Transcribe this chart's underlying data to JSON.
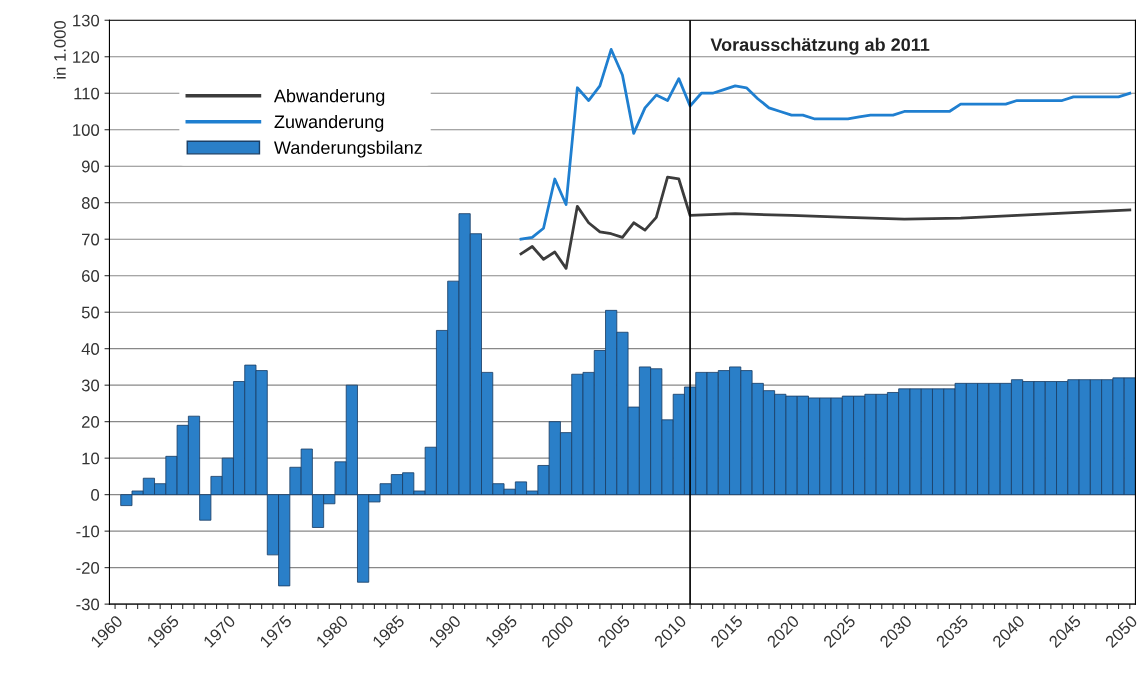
{
  "chart_data": {
    "type": "bar",
    "ylabel": "in 1.000",
    "xlim": [
      1959.5,
      2050.5
    ],
    "ylim": [
      -30,
      130
    ],
    "yticks": [
      -30,
      -20,
      -10,
      0,
      10,
      20,
      30,
      40,
      50,
      60,
      70,
      80,
      90,
      100,
      110,
      120,
      130
    ],
    "xticks": [
      1960,
      {
        "value": 1961,
        "label": null
      },
      {
        "value": 1962,
        "label": null
      },
      {
        "value": 1963,
        "label": null
      },
      {
        "value": 1964,
        "label": null
      },
      1965,
      {
        "value": 1966,
        "label": null
      },
      {
        "value": 1967,
        "label": null
      },
      {
        "value": 1968,
        "label": null
      },
      {
        "value": 1969,
        "label": null
      },
      1970,
      {
        "value": 1971,
        "label": null
      },
      {
        "value": 1972,
        "label": null
      },
      {
        "value": 1973,
        "label": null
      },
      {
        "value": 1974,
        "label": null
      },
      1975,
      {
        "value": 1976,
        "label": null
      },
      {
        "value": 1977,
        "label": null
      },
      {
        "value": 1978,
        "label": null
      },
      {
        "value": 1979,
        "label": null
      },
      1980,
      {
        "value": 1981,
        "label": null
      },
      {
        "value": 1982,
        "label": null
      },
      {
        "value": 1983,
        "label": null
      },
      {
        "value": 1984,
        "label": null
      },
      1985,
      {
        "value": 1986,
        "label": null
      },
      {
        "value": 1987,
        "label": null
      },
      {
        "value": 1988,
        "label": null
      },
      {
        "value": 1989,
        "label": null
      },
      1990,
      {
        "value": 1991,
        "label": null
      },
      {
        "value": 1992,
        "label": null
      },
      {
        "value": 1993,
        "label": null
      },
      {
        "value": 1994,
        "label": null
      },
      1995,
      {
        "value": 1996,
        "label": null
      },
      {
        "value": 1997,
        "label": null
      },
      {
        "value": 1998,
        "label": null
      },
      {
        "value": 1999,
        "label": null
      },
      2000,
      {
        "value": 2001,
        "label": null
      },
      {
        "value": 2002,
        "label": null
      },
      {
        "value": 2003,
        "label": null
      },
      {
        "value": 2004,
        "label": null
      },
      2005,
      {
        "value": 2006,
        "label": null
      },
      {
        "value": 2007,
        "label": null
      },
      {
        "value": 2008,
        "label": null
      },
      {
        "value": 2009,
        "label": null
      },
      2010,
      {
        "value": 2011,
        "label": null
      },
      {
        "value": 2012,
        "label": null
      },
      {
        "value": 2013,
        "label": null
      },
      {
        "value": 2014,
        "label": null
      },
      2015,
      {
        "value": 2016,
        "label": null
      },
      {
        "value": 2017,
        "label": null
      },
      {
        "value": 2018,
        "label": null
      },
      {
        "value": 2019,
        "label": null
      },
      2020,
      {
        "value": 2021,
        "label": null
      },
      {
        "value": 2022,
        "label": null
      },
      {
        "value": 2023,
        "label": null
      },
      {
        "value": 2024,
        "label": null
      },
      2025,
      {
        "value": 2026,
        "label": null
      },
      {
        "value": 2027,
        "label": null
      },
      {
        "value": 2028,
        "label": null
      },
      {
        "value": 2029,
        "label": null
      },
      2030,
      {
        "value": 2031,
        "label": null
      },
      {
        "value": 2032,
        "label": null
      },
      {
        "value": 2033,
        "label": null
      },
      {
        "value": 2034,
        "label": null
      },
      2035,
      {
        "value": 2036,
        "label": null
      },
      {
        "value": 2037,
        "label": null
      },
      {
        "value": 2038,
        "label": null
      },
      {
        "value": 2039,
        "label": null
      },
      2040,
      {
        "value": 2041,
        "label": null
      },
      {
        "value": 2042,
        "label": null
      },
      {
        "value": 2043,
        "label": null
      },
      {
        "value": 2044,
        "label": null
      },
      2045,
      {
        "value": 2046,
        "label": null
      },
      {
        "value": 2047,
        "label": null
      },
      {
        "value": 2048,
        "label": null
      },
      {
        "value": 2049,
        "label": null
      },
      2050
    ],
    "grid": "y",
    "legend": "top left",
    "ref_lines": [
      {
        "axis": "x",
        "value": 2011,
        "label": "Vorausschätzung ab 2011",
        "color": "#000000",
        "line_style": "solid"
      }
    ],
    "series": [
      {
        "name": "Abwanderung",
        "type": "line",
        "color": "#3c3c3c",
        "x": [
          1996,
          1997,
          1998,
          1999,
          2000,
          2001,
          2002,
          2003,
          2004,
          2005,
          2006,
          2007,
          2008,
          2009,
          2010,
          2011,
          2015,
          2020,
          2025,
          2030,
          2035,
          2040,
          2045,
          2050
        ],
        "values": [
          66,
          68,
          64.5,
          66.5,
          62,
          79,
          74.5,
          72,
          71.5,
          70.5,
          74.5,
          72.5,
          76,
          87,
          86.5,
          76.5,
          77,
          76.5,
          76,
          75.5,
          75.8,
          76.5,
          77.3,
          78
        ]
      },
      {
        "name": "Zuwanderung",
        "type": "line",
        "color": "#1f7fd0",
        "x": [
          1996,
          1997,
          1998,
          1999,
          2000,
          2001,
          2002,
          2003,
          2004,
          2005,
          2006,
          2007,
          2008,
          2009,
          2010,
          2011,
          2012,
          2013,
          2014,
          2015,
          2016,
          2017,
          2018,
          2019,
          2020,
          2021,
          2022,
          2023,
          2024,
          2025,
          2026,
          2027,
          2028,
          2029,
          2030,
          2034,
          2035,
          2039,
          2040,
          2044,
          2045,
          2049,
          2050
        ],
        "values": [
          70,
          70.5,
          73,
          86.5,
          79.5,
          111.5,
          108,
          112,
          122,
          115,
          99,
          106,
          109.5,
          108,
          114,
          106.5,
          110,
          110,
          111,
          112,
          111.5,
          108.5,
          106,
          105,
          104,
          104,
          103,
          103,
          103,
          103,
          103.5,
          104,
          104,
          104,
          105,
          105,
          107,
          107,
          108,
          108,
          109,
          109,
          110
        ]
      },
      {
        "name": "Wanderungsbilanz",
        "color": "#2a7fc8",
        "x": [
          1961,
          1962,
          1963,
          1964,
          1965,
          1966,
          1967,
          1968,
          1969,
          1970,
          1971,
          1972,
          1973,
          1974,
          1975,
          1976,
          1977,
          1978,
          1979,
          1980,
          1981,
          1982,
          1983,
          1984,
          1985,
          1986,
          1987,
          1988,
          1989,
          1990,
          1991,
          1992,
          1993,
          1994,
          1995,
          1996,
          1997,
          1998,
          1999,
          2000,
          2001,
          2002,
          2003,
          2004,
          2005,
          2006,
          2007,
          2008,
          2009,
          2010,
          2011,
          2012,
          2013,
          2014,
          2015,
          2016,
          2017,
          2018,
          2019,
          2020,
          2021,
          2022,
          2023,
          2024,
          2025,
          2026,
          2027,
          2028,
          2029,
          2030,
          2031,
          2032,
          2033,
          2034,
          2035,
          2036,
          2037,
          2038,
          2039,
          2040,
          2041,
          2042,
          2043,
          2044,
          2045,
          2046,
          2047,
          2048,
          2049,
          2050
        ],
        "values": [
          -3,
          1,
          4.5,
          3,
          10.5,
          19,
          21.5,
          -7,
          5,
          10,
          31,
          35.5,
          34,
          -16.5,
          -25,
          7.5,
          12.5,
          -9,
          -2.5,
          9,
          30,
          -24,
          -2,
          3,
          5.5,
          6,
          1,
          13,
          45,
          58.5,
          77,
          71.5,
          33.5,
          3,
          1.5,
          3.5,
          1,
          8,
          20,
          17,
          33,
          33.5,
          39.5,
          50.5,
          44.5,
          24,
          35,
          34.5,
          20.5,
          27.5,
          29.5,
          33.5,
          33.5,
          34,
          35,
          34,
          30.5,
          28.5,
          27.5,
          27,
          27,
          26.5,
          26.5,
          26.5,
          27,
          27,
          27.5,
          27.5,
          28,
          29,
          29,
          29,
          29,
          29,
          30.5,
          30.5,
          30.5,
          30.5,
          30.5,
          31.5,
          31,
          31,
          31,
          31,
          31.5,
          31.5,
          31.5,
          31.5,
          32,
          32
        ]
      }
    ]
  }
}
